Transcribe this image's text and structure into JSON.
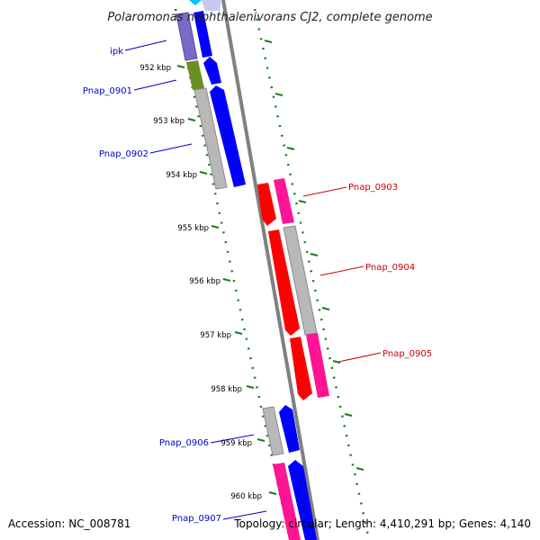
{
  "title": "Polaromonas naphthalenivorans CJ2, complete genome",
  "accession": "Accession: NC_008781",
  "topology": "Topology: circular; Length: 4,410,291 bp; Genes: 4,140",
  "colors": {
    "backbone": "#808080",
    "tick": "#1e7b1e",
    "forward_label": "#0000cc",
    "reverse_label": "#cc0000",
    "blue": "#0000ff",
    "purple": "#7b68c8",
    "olive": "#6b8e23",
    "gray": "#b8b8b8",
    "red": "#ff0000",
    "pink": "#ff1493",
    "cyan": "#00bfff",
    "lavender": "#c8c8f0"
  },
  "scale_labels": [
    "952 kbp",
    "953 kbp",
    "954 kbp",
    "955 kbp",
    "956 kbp",
    "957 kbp",
    "958 kbp",
    "959 kbp",
    "960 kbp"
  ],
  "gene_labels": {
    "forward": [
      "ipk",
      "Pnap_0901",
      "Pnap_0902",
      "Pnap_0906",
      "Pnap_0907"
    ],
    "reverse": [
      "Pnap_0903",
      "Pnap_0904",
      "Pnap_0905"
    ]
  }
}
